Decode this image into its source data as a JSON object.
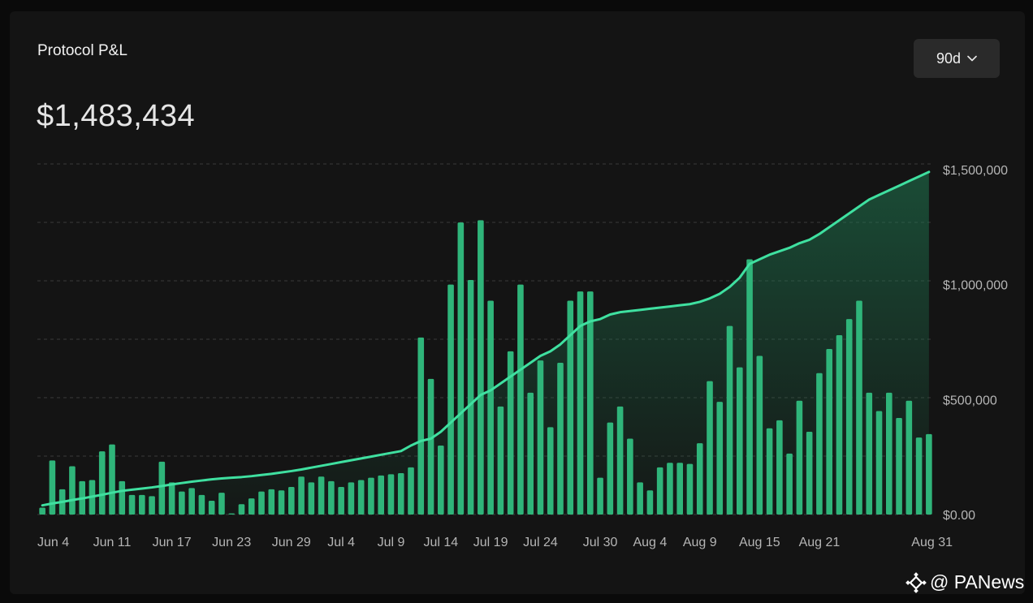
{
  "header": {
    "title": "Protocol P&L",
    "value": "$1,483,434",
    "range_label": "90d"
  },
  "watermark": {
    "text": "@ PANews"
  },
  "colors": {
    "bar": "#2fb57a",
    "line": "#3fe0a0",
    "area": "#1f7a52",
    "grid": "#3a3a3a",
    "axis_text": "#b5b5b5"
  },
  "icons": {
    "range_chevron": "chevron-down-icon",
    "watermark_logo": "binance-diamond-icon"
  },
  "chart_data": {
    "type": "bar",
    "title": "",
    "xlabel": "",
    "ylabel": "",
    "ylim": [
      0,
      1500000
    ],
    "y_ticks": [
      "$0.00",
      "$500,000",
      "$1,000,000",
      "$1,500,000"
    ],
    "y_tick_values": [
      0,
      500000,
      1000000,
      1500000
    ],
    "grid": true,
    "x_tick_labels": [
      "Jun 4",
      "Jun 11",
      "Jun 17",
      "Jun 23",
      "Jun 29",
      "Jul 4",
      "Jul 9",
      "Jul 14",
      "Jul 19",
      "Jul 24",
      "Jul 30",
      "Aug 4",
      "Aug 9",
      "Aug 15",
      "Aug 21",
      "Aug 31"
    ],
    "x_tick_indices": [
      0,
      7,
      13,
      19,
      25,
      30,
      35,
      40,
      45,
      50,
      56,
      61,
      66,
      72,
      78,
      88
    ],
    "series": [
      {
        "type": "bar",
        "values": [
          30000,
          235000,
          110000,
          210000,
          145000,
          150000,
          275000,
          305000,
          145000,
          85000,
          85000,
          80000,
          230000,
          140000,
          100000,
          115000,
          85000,
          60000,
          95000,
          5000,
          45000,
          70000,
          100000,
          110000,
          105000,
          120000,
          165000,
          140000,
          165000,
          145000,
          120000,
          140000,
          150000,
          160000,
          170000,
          175000,
          180000,
          205000,
          770000,
          590000,
          300000,
          1000000,
          1270000,
          1020000,
          1280000,
          930000,
          470000,
          710000,
          1000000,
          530000,
          670000,
          380000,
          660000,
          930000,
          970000,
          970000,
          160000,
          400000,
          470000,
          330000,
          140000,
          105000,
          205000,
          225000,
          225000,
          220000,
          310000,
          580000,
          490000,
          820000,
          640000,
          1110000,
          690000,
          375000,
          410000,
          265000,
          495000,
          360000,
          615000,
          720000,
          780000,
          850000,
          930000,
          530000,
          450000,
          530000,
          420000,
          495000,
          335000,
          350000
        ]
      },
      {
        "type": "area",
        "name": "",
        "values": [
          40000,
          48000,
          55000,
          63000,
          70000,
          78000,
          86000,
          95000,
          103000,
          108000,
          113000,
          118000,
          124000,
          131000,
          137000,
          143000,
          148000,
          153000,
          157000,
          160000,
          163000,
          167000,
          172000,
          177000,
          183000,
          189000,
          196000,
          204000,
          212000,
          220000,
          228000,
          236000,
          244000,
          252000,
          260000,
          268000,
          276000,
          300000,
          320000,
          330000,
          360000,
          400000,
          440000,
          480000,
          520000,
          540000,
          570000,
          600000,
          630000,
          660000,
          690000,
          710000,
          740000,
          780000,
          820000,
          840000,
          850000,
          870000,
          880000,
          885000,
          890000,
          895000,
          900000,
          905000,
          910000,
          915000,
          925000,
          940000,
          960000,
          990000,
          1030000,
          1090000,
          1110000,
          1130000,
          1145000,
          1160000,
          1180000,
          1195000,
          1220000,
          1250000,
          1280000,
          1310000,
          1340000,
          1370000,
          1390000,
          1410000,
          1430000,
          1450000,
          1470000,
          1490000
        ]
      }
    ]
  }
}
